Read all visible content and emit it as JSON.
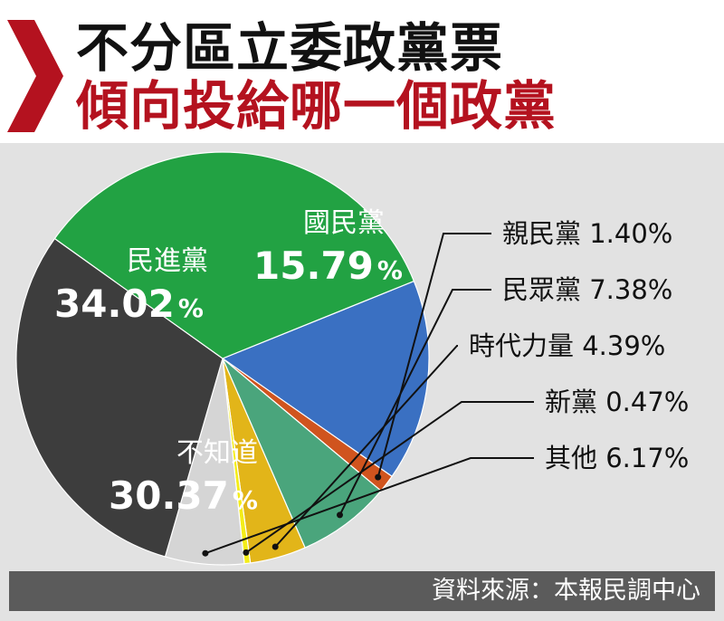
{
  "header": {
    "title": "不分區立委政黨票",
    "subtitle": "傾向投給哪一個政黨"
  },
  "footer": {
    "source": "資料來源：本報民調中心"
  },
  "colors": {
    "accent_red": "#b4121f",
    "panel_bg": "#e2e2e2",
    "footer_bg": "#5b5b5b"
  },
  "chart_data": {
    "type": "pie",
    "title": "不分區立委政黨票 傾向投給哪一個政黨",
    "unit": "%",
    "slices": [
      {
        "name": "國民黨",
        "value": 15.79,
        "value_text": "15.79",
        "color": "#3a70c2",
        "label_pos": "inside"
      },
      {
        "name": "親民黨",
        "value": 1.4,
        "value_text": "1.40%",
        "color": "#d0541e",
        "label_pos": "outside"
      },
      {
        "name": "民眾黨",
        "value": 7.38,
        "value_text": "7.38%",
        "color": "#4aa57c",
        "label_pos": "outside"
      },
      {
        "name": "時代力量",
        "value": 4.39,
        "value_text": "4.39%",
        "color": "#e2b519",
        "label_pos": "outside"
      },
      {
        "name": "新黨",
        "value": 0.47,
        "value_text": "0.47%",
        "color": "#f4ed18",
        "label_pos": "outside"
      },
      {
        "name": "其他",
        "value": 6.17,
        "value_text": "6.17%",
        "color": "#d5d5d5",
        "label_pos": "outside"
      },
      {
        "name": "不知道",
        "value": 30.37,
        "value_text": "30.37",
        "color": "#3d3d3d",
        "label_pos": "inside"
      },
      {
        "name": "民進黨",
        "value": 34.02,
        "value_text": "34.02",
        "color": "#22a243",
        "label_pos": "inside"
      }
    ]
  }
}
